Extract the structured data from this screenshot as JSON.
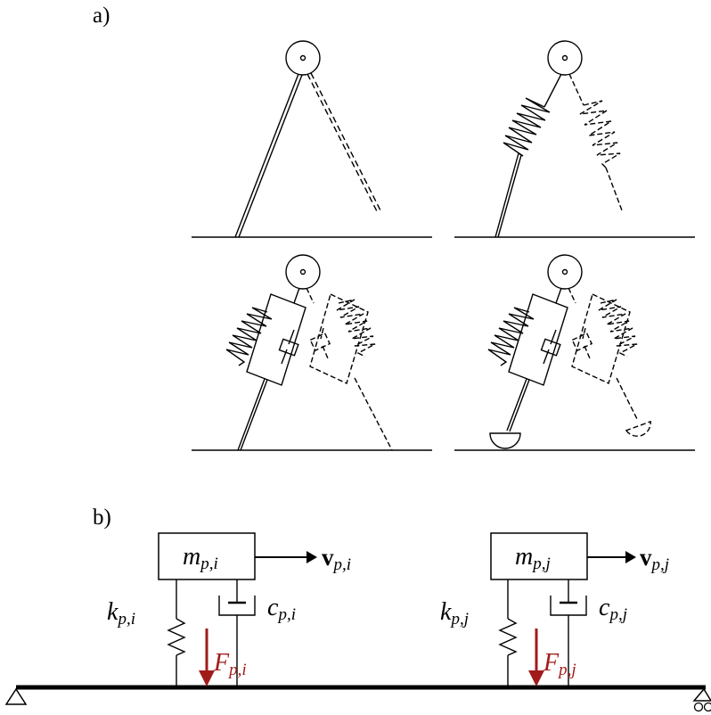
{
  "panel_a": {
    "label": "a)"
  },
  "panel_b": {
    "label": "b)",
    "mass_i": {
      "base": "m",
      "sub": "p,i"
    },
    "mass_j": {
      "base": "m",
      "sub": "p,j"
    },
    "velocity_i": {
      "base": "v",
      "sub": "p,i"
    },
    "velocity_j": {
      "base": "v",
      "sub": "p,j"
    },
    "stiffness_i": {
      "base": "k",
      "sub": "p,i"
    },
    "stiffness_j": {
      "base": "k",
      "sub": "p,j"
    },
    "damping_i": {
      "base": "c",
      "sub": "p,i"
    },
    "damping_j": {
      "base": "c",
      "sub": "p,j"
    },
    "force_i": {
      "base": "F",
      "sub": "p,i"
    },
    "force_j": {
      "base": "F",
      "sub": "p,j"
    }
  },
  "colors": {
    "force": "#a11b1b",
    "ink": "#000000"
  }
}
